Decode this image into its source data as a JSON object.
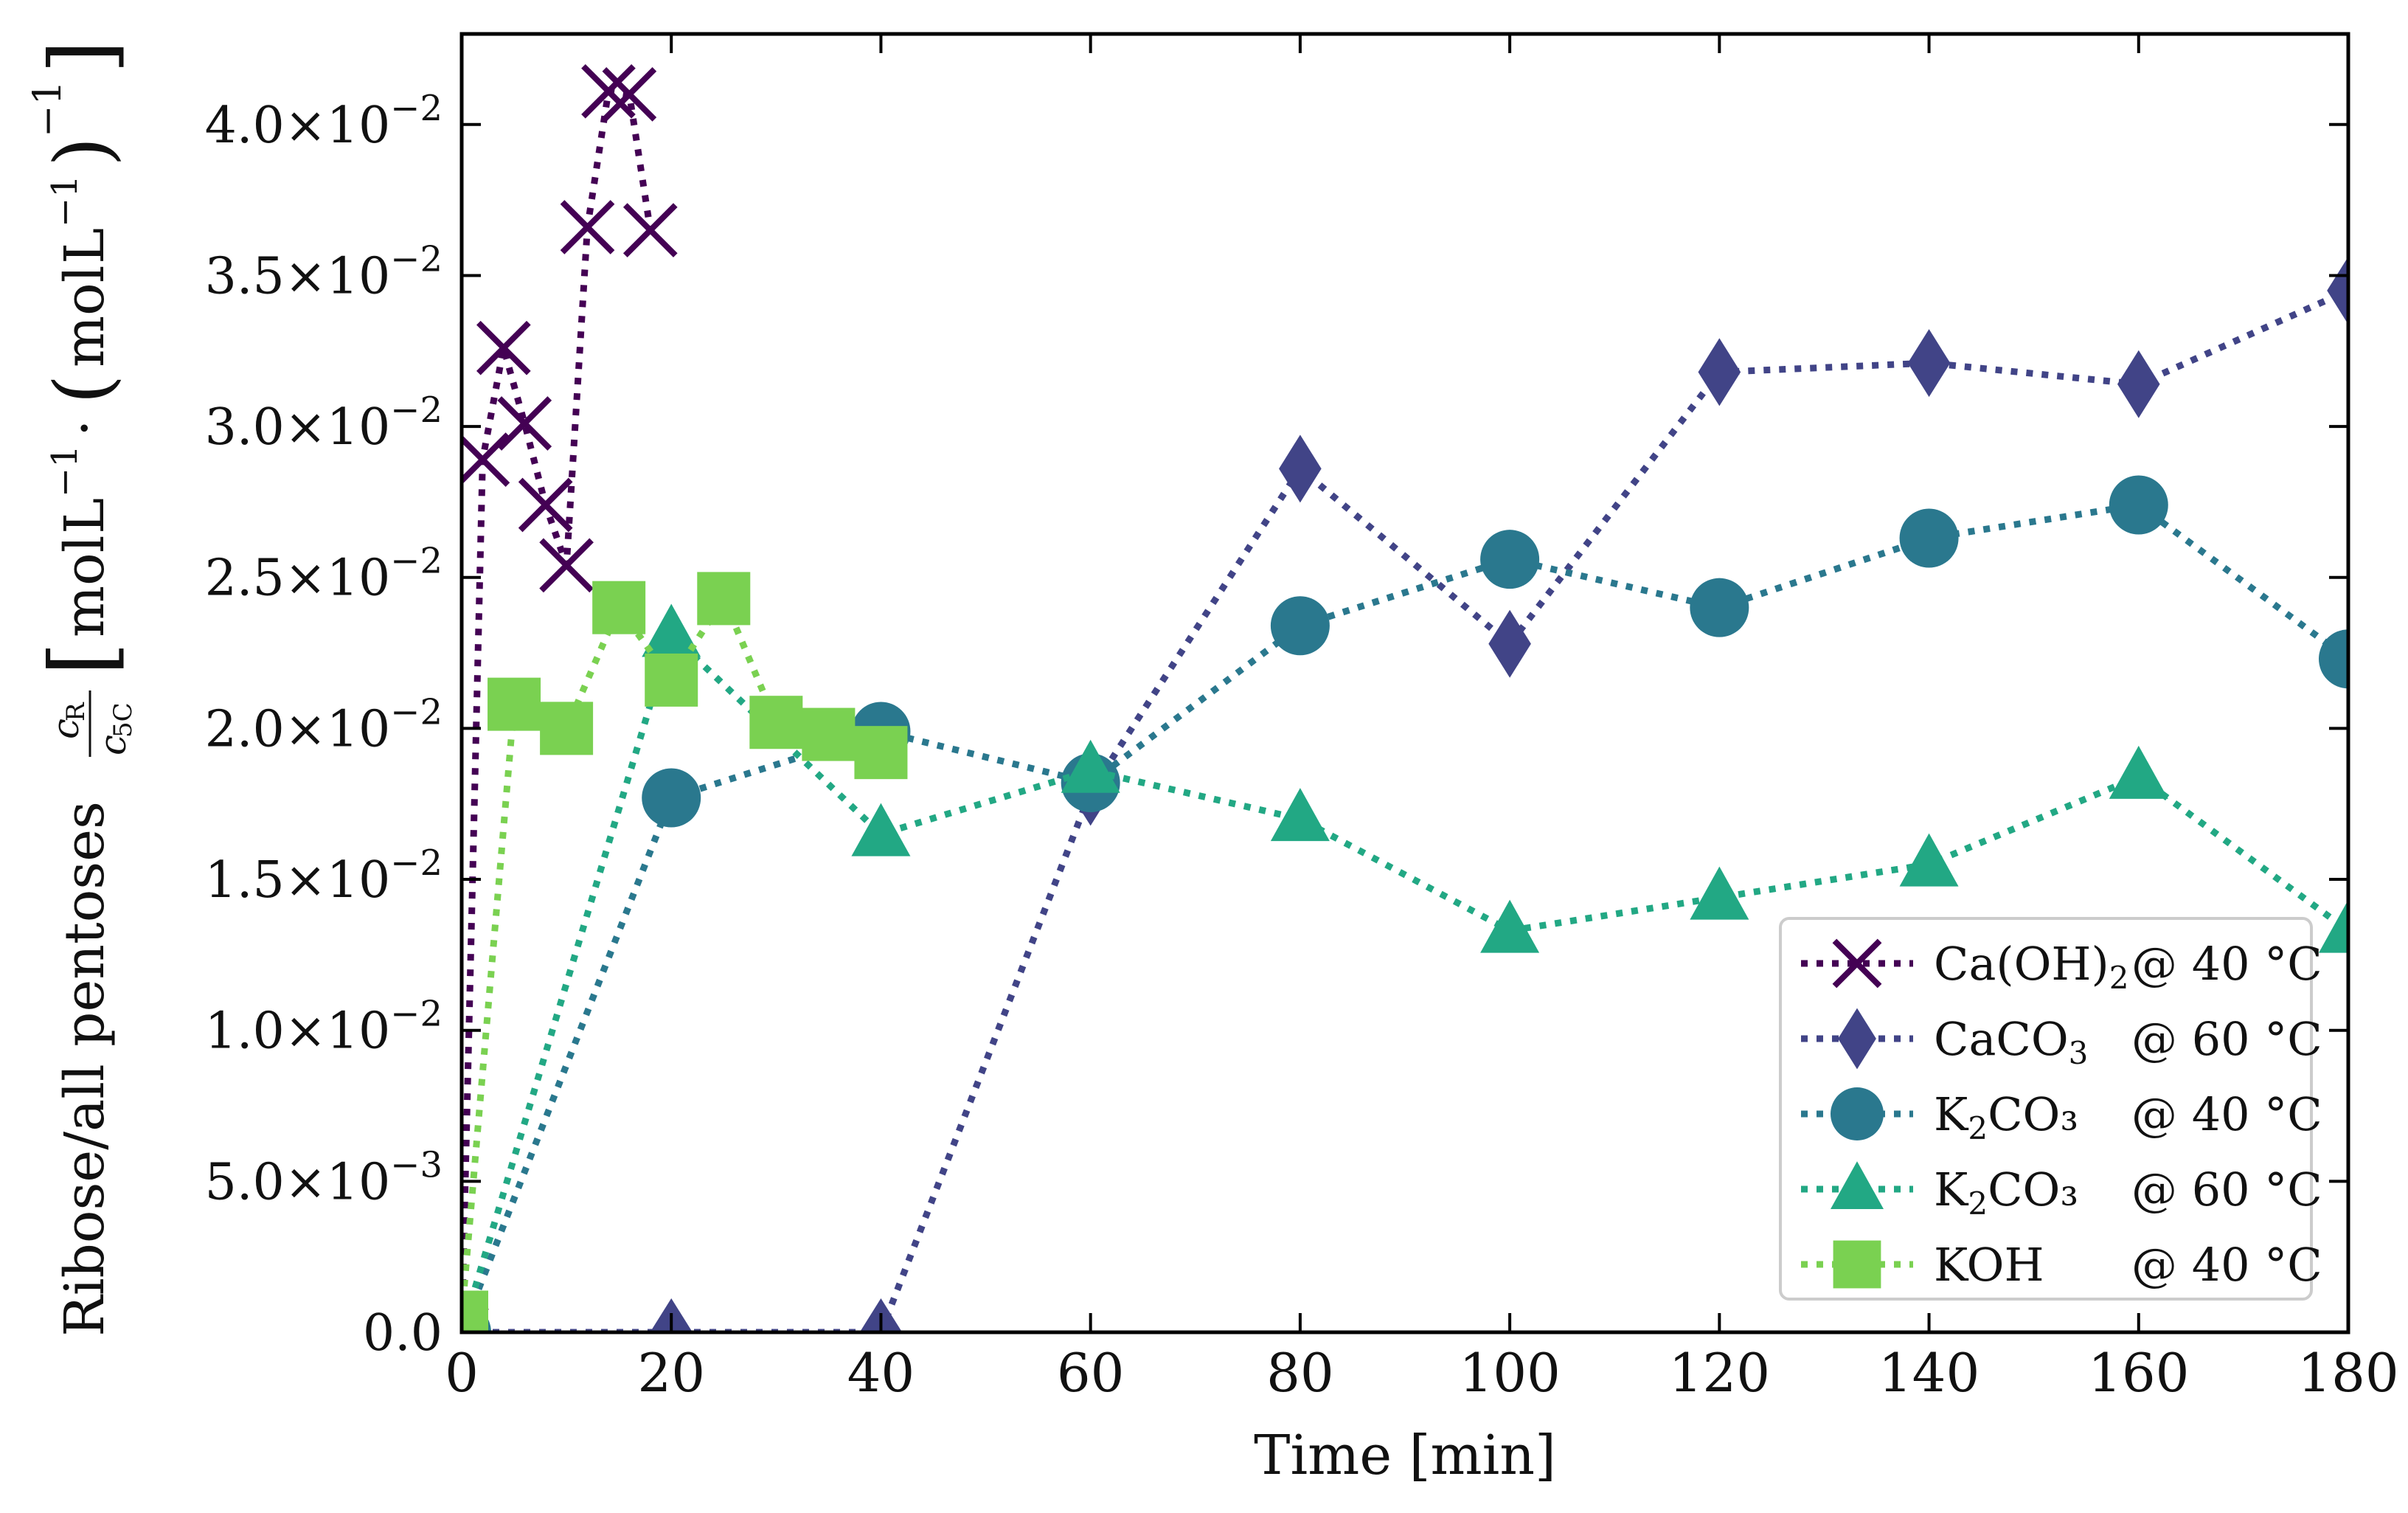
{
  "chart_data": {
    "type": "line",
    "xlabel": "Time [min]",
    "ylabel": {
      "main": "Ribose/all pentoses",
      "frac_num": "c",
      "frac_num_sub": "R",
      "frac_den": "c",
      "frac_den_sub": "5C",
      "unit_mol": "mol",
      "unit_L": "L",
      "unit_exp": "−1",
      "dot": "·",
      "outer_exp": "−1"
    },
    "xlim": [
      0,
      180
    ],
    "ylim": [
      0,
      0.043
    ],
    "x_ticks": [
      0,
      20,
      40,
      60,
      80,
      100,
      120,
      140,
      160,
      180
    ],
    "x_tick_labels": [
      "0",
      "20",
      "40",
      "60",
      "80",
      "100",
      "120",
      "140",
      "160",
      "180"
    ],
    "y_ticks": [
      0,
      0.005,
      0.01,
      0.015,
      0.02,
      0.025,
      0.03,
      0.035,
      0.04
    ],
    "y_tick_labels": [
      {
        "mant": "0.0",
        "exp": ""
      },
      {
        "mant": "5.0",
        "exp": "−3"
      },
      {
        "mant": "1.0",
        "exp": "−2"
      },
      {
        "mant": "1.5",
        "exp": "−2"
      },
      {
        "mant": "2.0",
        "exp": "−2"
      },
      {
        "mant": "2.5",
        "exp": "−2"
      },
      {
        "mant": "3.0",
        "exp": "−2"
      },
      {
        "mant": "3.5",
        "exp": "−2"
      },
      {
        "mant": "4.0",
        "exp": "−2"
      }
    ],
    "y_tick_times": "×10",
    "legend_position": "lower-right",
    "series": [
      {
        "name": "Ca(OH)2 @ 40 °C",
        "legend_main": "Ca(OH)",
        "legend_sub": "2",
        "legend_tail": "",
        "legend_temp": "@ 40 °C",
        "marker": "x",
        "color": "#440154",
        "x": [
          0,
          2,
          4,
          6,
          8,
          10,
          12,
          14,
          16,
          18
        ],
        "y": [
          0.0,
          0.0289,
          0.0326,
          0.0301,
          0.0274,
          0.0254,
          0.0366,
          0.0411,
          0.041,
          0.0365
        ]
      },
      {
        "name": "CaCO3 @ 60 °C",
        "legend_main": "CaCO",
        "legend_sub": "3",
        "legend_tail": "",
        "legend_temp": "@ 60 °C",
        "marker": "diamond",
        "color": "#414487",
        "x": [
          0,
          20,
          40,
          60,
          80,
          100,
          120,
          140,
          160,
          180
        ],
        "y": [
          0.0,
          0.0,
          0.0,
          0.0179,
          0.0286,
          0.0228,
          0.0318,
          0.0321,
          0.0314,
          0.0345
        ]
      },
      {
        "name": "K2CO3 @ 40 °C",
        "legend_main": "K",
        "legend_sub": "2",
        "legend_tail": "CO₃",
        "legend_temp": "@ 40 °C",
        "marker": "circle",
        "color": "#2a788e",
        "x": [
          0,
          20,
          40,
          60,
          80,
          100,
          120,
          140,
          160,
          180
        ],
        "y": [
          0.0,
          0.0177,
          0.0199,
          0.0182,
          0.0234,
          0.0256,
          0.024,
          0.0263,
          0.0274,
          0.0223
        ]
      },
      {
        "name": "K2CO3 @ 60 °C",
        "legend_main": "K",
        "legend_sub": "2",
        "legend_tail": "CO₃",
        "legend_temp": "@ 60 °C",
        "marker": "triangle",
        "color": "#22a884",
        "x": [
          0,
          20,
          40,
          60,
          80,
          100,
          120,
          140,
          160,
          180
        ],
        "y": [
          0.0,
          0.0231,
          0.0165,
          0.0186,
          0.017,
          0.0133,
          0.0144,
          0.0155,
          0.0184,
          0.0133
        ]
      },
      {
        "name": "KOH @ 40 °C",
        "legend_main": "KOH",
        "legend_sub": "",
        "legend_tail": "",
        "legend_temp": "@ 40 °C",
        "marker": "square",
        "color": "#7ad151",
        "x": [
          0,
          5,
          10,
          15,
          20,
          25,
          30,
          35,
          40
        ],
        "y": [
          0.0005,
          0.0208,
          0.02,
          0.024,
          0.0216,
          0.0243,
          0.0202,
          0.0198,
          0.0192
        ]
      }
    ]
  }
}
